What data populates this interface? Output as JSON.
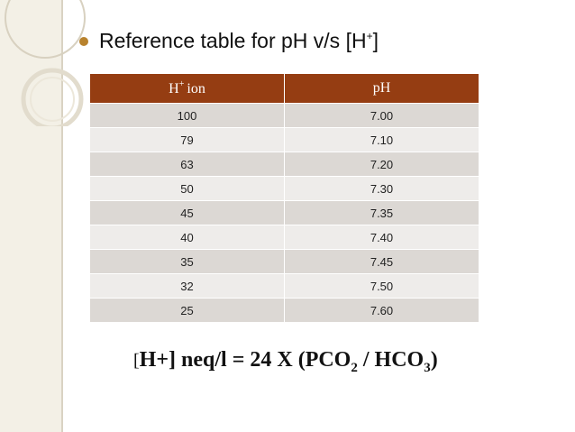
{
  "heading": {
    "text": "Reference table for pH v/s [H",
    "sup": "+",
    "close": "]"
  },
  "table": {
    "header": {
      "col1_main": "H",
      "col1_sup": "+",
      "col1_rest": "ion",
      "col2": "pH"
    },
    "rows": [
      {
        "h_ion": "100",
        "ph": "7.00"
      },
      {
        "h_ion": "79",
        "ph": "7.10"
      },
      {
        "h_ion": "63",
        "ph": "7.20"
      },
      {
        "h_ion": "50",
        "ph": "7.30"
      },
      {
        "h_ion": "45",
        "ph": "7.35"
      },
      {
        "h_ion": "40",
        "ph": "7.40"
      },
      {
        "h_ion": "35",
        "ph": "7.45"
      },
      {
        "h_ion": "32",
        "ph": "7.50"
      },
      {
        "h_ion": "25",
        "ph": "7.60"
      }
    ]
  },
  "formula": {
    "open": "[",
    "part1": "H+] neq/l  = 24 X (PCO",
    "sub1": "2",
    "part2": " / HCO",
    "sub2": "3",
    "close": ")"
  },
  "colors": {
    "header_bg": "#953d12",
    "row_odd": "#dcd8d4",
    "row_even": "#eeecea",
    "bullet": "#b8822d"
  }
}
